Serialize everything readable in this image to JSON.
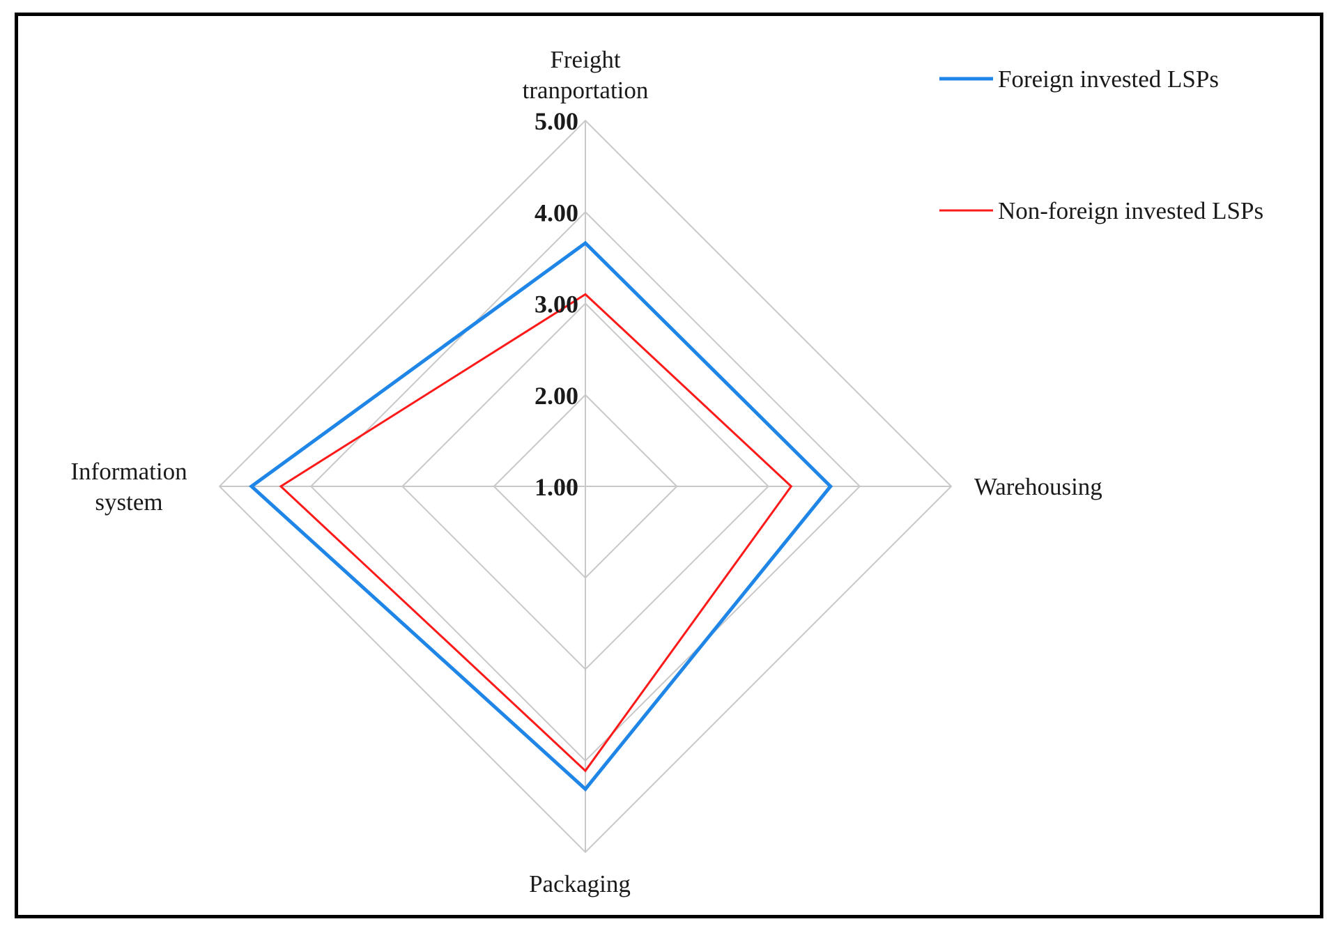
{
  "chart_data": {
    "type": "radar",
    "axes": [
      "Freight tranportation",
      "Warehousing",
      "Packaging",
      "Information system"
    ],
    "axis_label_lines": [
      [
        "Freight",
        "tranportation"
      ],
      [
        "Warehousing"
      ],
      [
        "Packaging"
      ],
      [
        "Information",
        "system"
      ]
    ],
    "ticks": [
      "1.00",
      "2.00",
      "3.00",
      "4.00",
      "5.00"
    ],
    "range": [
      1,
      5
    ],
    "series": [
      {
        "name": "Foreign invested LSPs",
        "color": "#1f86e8",
        "values": [
          3.66,
          3.68,
          4.31,
          4.65
        ]
      },
      {
        "name": "Non-foreign invested LSPs",
        "color": "#ff1a1a",
        "values": [
          3.1,
          3.25,
          4.11,
          4.33
        ]
      }
    ],
    "gridline_color": "#c8c8c8",
    "legend_position": "top-right"
  }
}
